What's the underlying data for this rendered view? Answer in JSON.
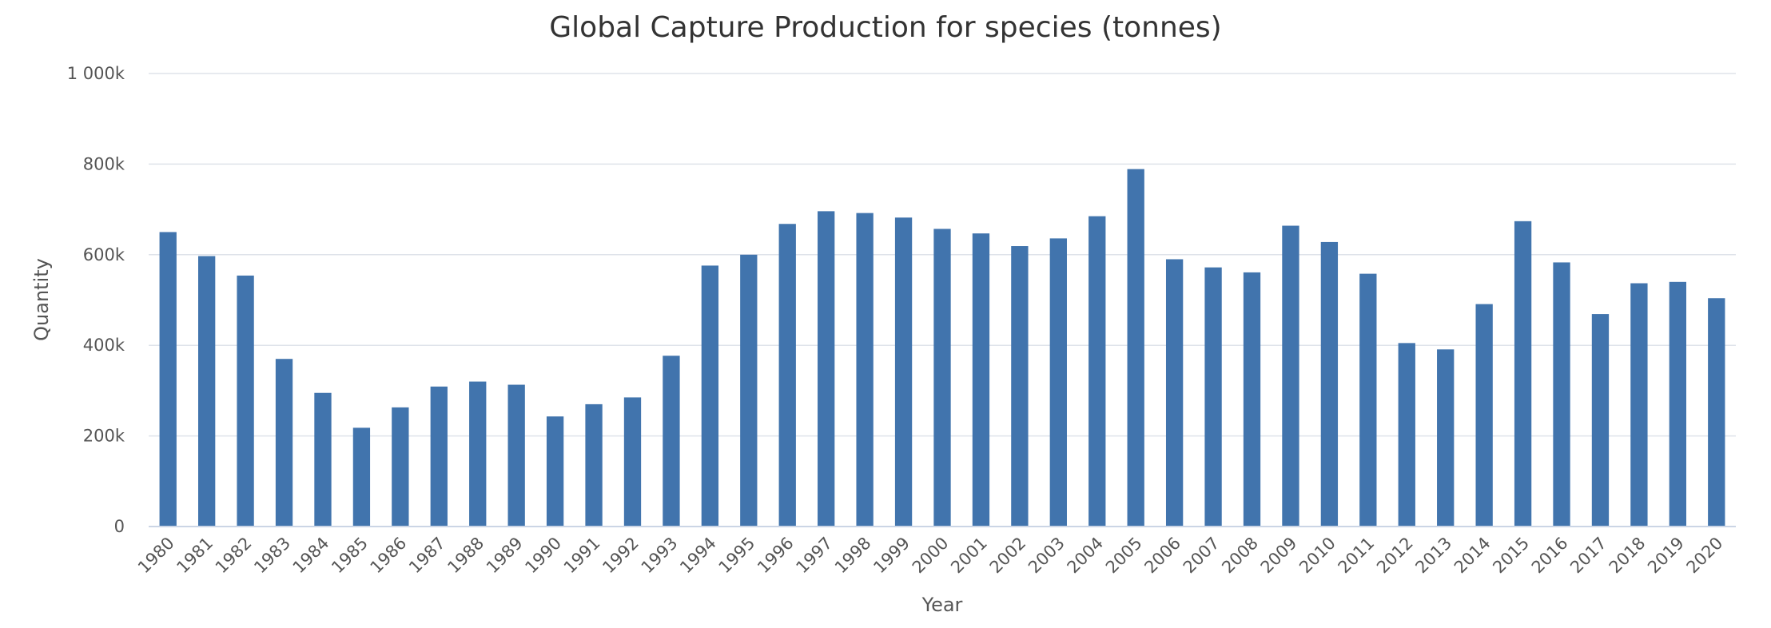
{
  "chart_data": {
    "type": "bar",
    "title": "Global Capture Production for species (tonnes)",
    "xlabel": "Year",
    "ylabel": "Quantity",
    "ylim": [
      0,
      1000000
    ],
    "yticks": [
      0,
      200000,
      400000,
      600000,
      800000,
      1000000
    ],
    "ytick_labels": [
      "0",
      "200k",
      "400k",
      "600k",
      "800k",
      "1 000k"
    ],
    "grid": true,
    "bar_color": "#4174ad",
    "categories": [
      "1980",
      "1981",
      "1982",
      "1983",
      "1984",
      "1985",
      "1986",
      "1987",
      "1988",
      "1989",
      "1990",
      "1991",
      "1992",
      "1993",
      "1994",
      "1995",
      "1996",
      "1997",
      "1998",
      "1999",
      "2000",
      "2001",
      "2002",
      "2003",
      "2004",
      "2005",
      "2006",
      "2007",
      "2008",
      "2009",
      "2010",
      "2011",
      "2012",
      "2013",
      "2014",
      "2015",
      "2016",
      "2017",
      "2018",
      "2019",
      "2020"
    ],
    "values": [
      650000,
      597000,
      554000,
      370000,
      295000,
      218000,
      263000,
      309000,
      320000,
      313000,
      243000,
      270000,
      285000,
      377000,
      576000,
      600000,
      668000,
      696000,
      692000,
      682000,
      657000,
      647000,
      619000,
      636000,
      685000,
      789000,
      590000,
      572000,
      561000,
      664000,
      628000,
      558000,
      405000,
      391000,
      491000,
      674000,
      583000,
      469000,
      537000,
      540000,
      504000
    ]
  }
}
